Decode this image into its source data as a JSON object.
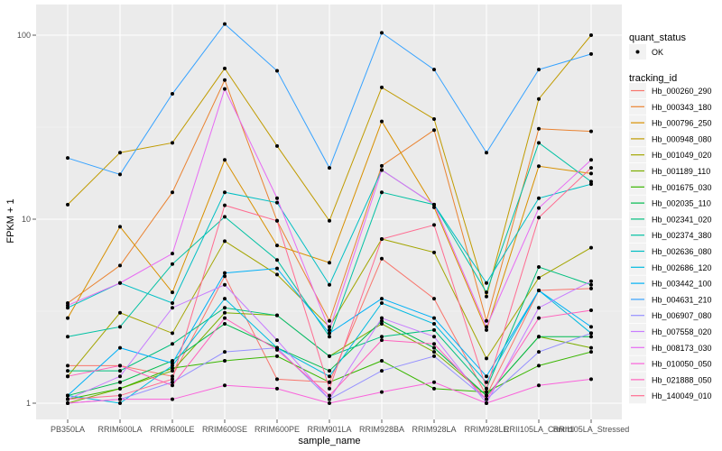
{
  "chart_data": {
    "type": "line",
    "xlabel": "sample_name",
    "ylabel": "FPKM + 1",
    "y_scale": "log10",
    "ylim": [
      0.85,
      140
    ],
    "y_ticks": [
      {
        "value": 1,
        "label": "1"
      },
      {
        "value": 10,
        "label": "10"
      },
      {
        "value": 100,
        "label": "100"
      }
    ],
    "grid": true,
    "legend_position": "right",
    "categories": [
      "PB350LA",
      "RRIM600LA",
      "RRIM600LE",
      "RRIM600SE",
      "RRIM600PE",
      "RRIM901LA",
      "RRIM928BA",
      "RRIM928LA",
      "RRIM928LE",
      "RRII105LA_Control",
      "RRII105LA_Stressed"
    ],
    "legend_shape": {
      "title": "quant_status",
      "entries": [
        "OK"
      ]
    },
    "legend_color_title": "tracking_id",
    "series": [
      {
        "name": "Hb_000260_290",
        "color": "#F8766D",
        "values": [
          1.6,
          1.6,
          1.4,
          4.9,
          1.35,
          1.3,
          6.1,
          3.7,
          1.1,
          4.1,
          4.2
        ]
      },
      {
        "name": "Hb_000343_180",
        "color": "#EA8331",
        "values": [
          3.5,
          5.6,
          14,
          57,
          9.8,
          2.8,
          19.5,
          30.5,
          2.8,
          31,
          30
        ]
      },
      {
        "name": "Hb_000796_250",
        "color": "#D89000",
        "values": [
          2.9,
          9.1,
          4.0,
          21,
          7.2,
          5.8,
          34,
          11.6,
          2.5,
          19.4,
          17.7
        ]
      },
      {
        "name": "Hb_000948_080",
        "color": "#C09B00",
        "values": [
          12,
          23,
          26,
          66,
          25,
          9.8,
          52,
          35,
          3.8,
          45,
          100
        ]
      },
      {
        "name": "Hb_001049_020",
        "color": "#A3A500",
        "values": [
          1.4,
          3.1,
          2.4,
          7.6,
          5.0,
          2.6,
          7.8,
          6.6,
          1.75,
          4.8,
          7.0
        ]
      },
      {
        "name": "Hb_001189_110",
        "color": "#7CAE00",
        "values": [
          1.0,
          1.2,
          1.5,
          3.1,
          3.0,
          1.8,
          2.7,
          1.9,
          1.1,
          2.3,
          2.0
        ]
      },
      {
        "name": "Hb_001675_030",
        "color": "#39B600",
        "values": [
          1.05,
          1.2,
          1.55,
          1.7,
          1.8,
          1.3,
          1.7,
          1.2,
          1.15,
          1.6,
          1.9
        ]
      },
      {
        "name": "Hb_002035_110",
        "color": "#00BB4E",
        "values": [
          1.1,
          1.3,
          1.7,
          2.7,
          2.0,
          1.5,
          2.8,
          2.0,
          1.1,
          2.3,
          2.3
        ]
      },
      {
        "name": "Hb_002341_020",
        "color": "#00BF7D",
        "values": [
          1.5,
          1.5,
          2.1,
          3.3,
          3.0,
          1.8,
          2.3,
          2.5,
          1.2,
          5.5,
          4.4
        ]
      },
      {
        "name": "Hb_002374_380",
        "color": "#00C1A3",
        "values": [
          2.3,
          2.6,
          5.7,
          10.3,
          6.0,
          2.3,
          14,
          12,
          4.0,
          26,
          16
        ]
      },
      {
        "name": "Hb_002636_080",
        "color": "#00BFC4",
        "values": [
          3.3,
          4.5,
          3.5,
          14,
          12.3,
          4.4,
          18.5,
          12,
          4.5,
          13,
          15.5
        ]
      },
      {
        "name": "Hb_002686_120",
        "color": "#00BAE0",
        "values": [
          1.1,
          1.0,
          1.6,
          3.7,
          2.0,
          1.4,
          3.5,
          2.7,
          1.3,
          4.1,
          2.4
        ]
      },
      {
        "name": "Hb_003442_100",
        "color": "#00B0F6",
        "values": [
          1.1,
          2.0,
          1.65,
          5.1,
          5.4,
          2.4,
          3.7,
          2.9,
          1.4,
          4.1,
          2.6
        ]
      },
      {
        "name": "Hb_004631_210",
        "color": "#35A2FF",
        "values": [
          21.5,
          17.5,
          48,
          115,
          64,
          19,
          103,
          65,
          23,
          65,
          79
        ]
      },
      {
        "name": "Hb_006907_080",
        "color": "#9590FF",
        "values": [
          1.0,
          1.05,
          1.3,
          1.9,
          2.0,
          1.05,
          1.5,
          1.8,
          1.05,
          1.9,
          2.4
        ]
      },
      {
        "name": "Hb_007558_020",
        "color": "#C77CFF",
        "values": [
          1.05,
          1.4,
          3.3,
          4.4,
          2.2,
          1.05,
          2.9,
          2.3,
          1.0,
          3.3,
          4.6
        ]
      },
      {
        "name": "Hb_008173_030",
        "color": "#E76BF3",
        "values": [
          3.4,
          4.5,
          6.5,
          51,
          13,
          2.5,
          18.5,
          12,
          2.6,
          11.5,
          21
        ]
      },
      {
        "name": "Hb_010050_050",
        "color": "#FA62DB",
        "values": [
          1.0,
          1.05,
          1.05,
          1.25,
          1.2,
          1.0,
          1.15,
          1.3,
          1.0,
          1.25,
          1.35
        ]
      },
      {
        "name": "Hb_021888_050",
        "color": "#FF62BC",
        "values": [
          1.4,
          1.6,
          1.25,
          2.9,
          1.95,
          1.1,
          2.2,
          2.1,
          1.05,
          2.9,
          3.2
        ]
      },
      {
        "name": "Hb_140049_010",
        "color": "#FF6C91",
        "values": [
          1.05,
          1.1,
          1.35,
          11.9,
          9.8,
          1.2,
          7.8,
          9.3,
          1.2,
          10.2,
          19
        ]
      }
    ]
  }
}
